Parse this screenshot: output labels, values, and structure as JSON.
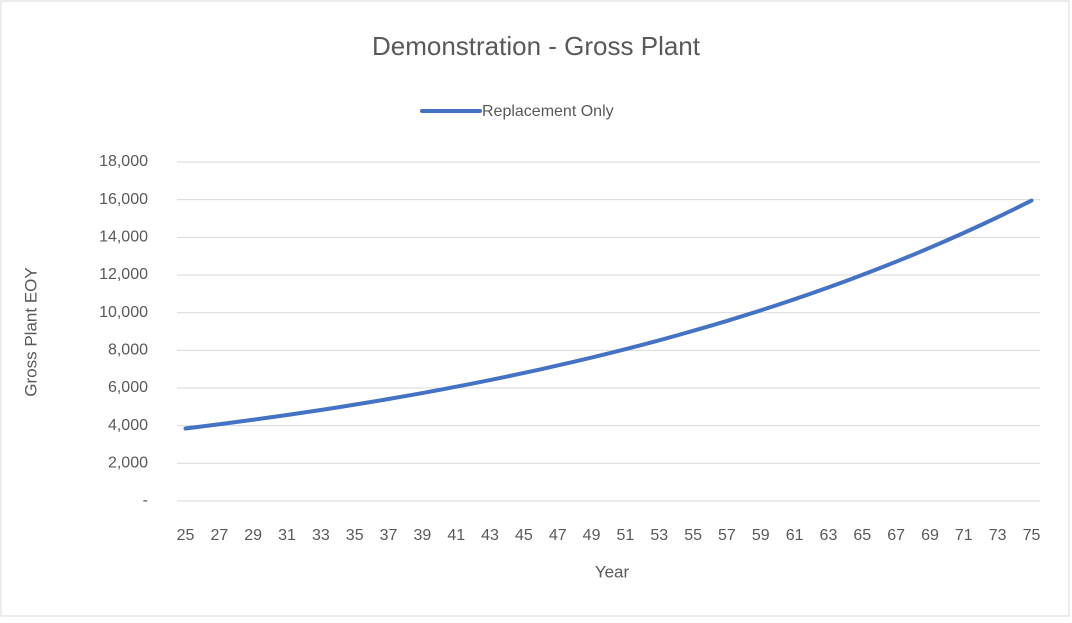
{
  "chart_data": {
    "type": "line",
    "title": "Demonstration - Gross Plant",
    "x_label": "Year",
    "y_label": "Gross Plant EOY",
    "x": [
      25,
      26,
      27,
      28,
      29,
      30,
      31,
      32,
      33,
      34,
      35,
      36,
      37,
      38,
      39,
      40,
      41,
      42,
      43,
      44,
      45,
      46,
      47,
      48,
      49,
      50,
      51,
      52,
      53,
      54,
      55,
      56,
      57,
      58,
      59,
      60,
      61,
      62,
      63,
      64,
      65,
      66,
      67,
      68,
      69,
      70,
      71,
      72,
      73,
      74,
      75
    ],
    "series": [
      {
        "name": "Replacement Only",
        "color": "#4472c4",
        "values": [
          3850,
          3961,
          4075,
          4193,
          4314,
          4438,
          4566,
          4698,
          4833,
          4973,
          5116,
          5264,
          5415,
          5572,
          5732,
          5898,
          6068,
          6243,
          6423,
          6608,
          6798,
          6994,
          7196,
          7404,
          7617,
          7837,
          8063,
          8296,
          8535,
          8781,
          9035,
          9295,
          9563,
          9839,
          10123,
          10415,
          10715,
          11024,
          11342,
          11669,
          12006,
          12350,
          12707,
          13073,
          13450,
          13838,
          14237,
          14648,
          15070,
          15505,
          15952
        ]
      }
    ],
    "xlim": [
      25,
      75
    ],
    "xticks": [
      25,
      27,
      29,
      31,
      33,
      35,
      37,
      39,
      41,
      43,
      45,
      47,
      49,
      51,
      53,
      55,
      57,
      59,
      61,
      63,
      65,
      67,
      69,
      71,
      73,
      75
    ],
    "ylim": [
      0,
      18000
    ],
    "yticks": [
      {
        "value": 0,
        "label": "-"
      },
      {
        "value": 2000,
        "label": "2,000"
      },
      {
        "value": 4000,
        "label": "4,000"
      },
      {
        "value": 6000,
        "label": "6,000"
      },
      {
        "value": 8000,
        "label": "8,000"
      },
      {
        "value": 10000,
        "label": "10,000"
      },
      {
        "value": 12000,
        "label": "12,000"
      },
      {
        "value": 14000,
        "label": "14,000"
      },
      {
        "value": 16000,
        "label": "16,000"
      },
      {
        "value": 18000,
        "label": "18,000"
      }
    ],
    "grid": true,
    "legend": "top"
  }
}
